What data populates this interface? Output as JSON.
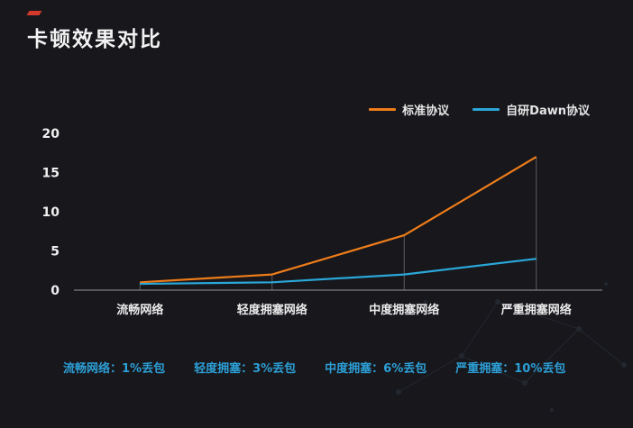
{
  "page": {
    "title": "卡顿效果对比"
  },
  "chart_data": {
    "type": "line",
    "title": "卡顿效果对比",
    "categories": [
      "流畅网络",
      "轻度拥塞网络",
      "中度拥塞网络",
      "严重拥塞网络"
    ],
    "series": [
      {
        "name": "标准协议",
        "color": "#ef7d1a",
        "values": [
          1,
          2,
          7,
          17
        ]
      },
      {
        "name": "自研Dawn协议",
        "color": "#2aa7d8",
        "values": [
          0.8,
          1,
          2,
          4
        ]
      }
    ],
    "ylim": [
      0,
      20
    ],
    "yticks": [
      0,
      5,
      10,
      15,
      20
    ],
    "xlabel": "",
    "ylabel": "",
    "grid": false,
    "legend_position": "top-right",
    "annotations": []
  },
  "footnote": {
    "color": "#2d9fd6",
    "items": [
      "流畅网络：1%丢包",
      "轻度拥塞：3%丢包",
      "中度拥塞：6%丢包",
      "严重拥塞：10%丢包"
    ]
  },
  "colors": {
    "background": "#17171c",
    "accent_red": "#d33a2c",
    "axis": "#9a9a9a",
    "dropline": "#7d7d7d"
  }
}
